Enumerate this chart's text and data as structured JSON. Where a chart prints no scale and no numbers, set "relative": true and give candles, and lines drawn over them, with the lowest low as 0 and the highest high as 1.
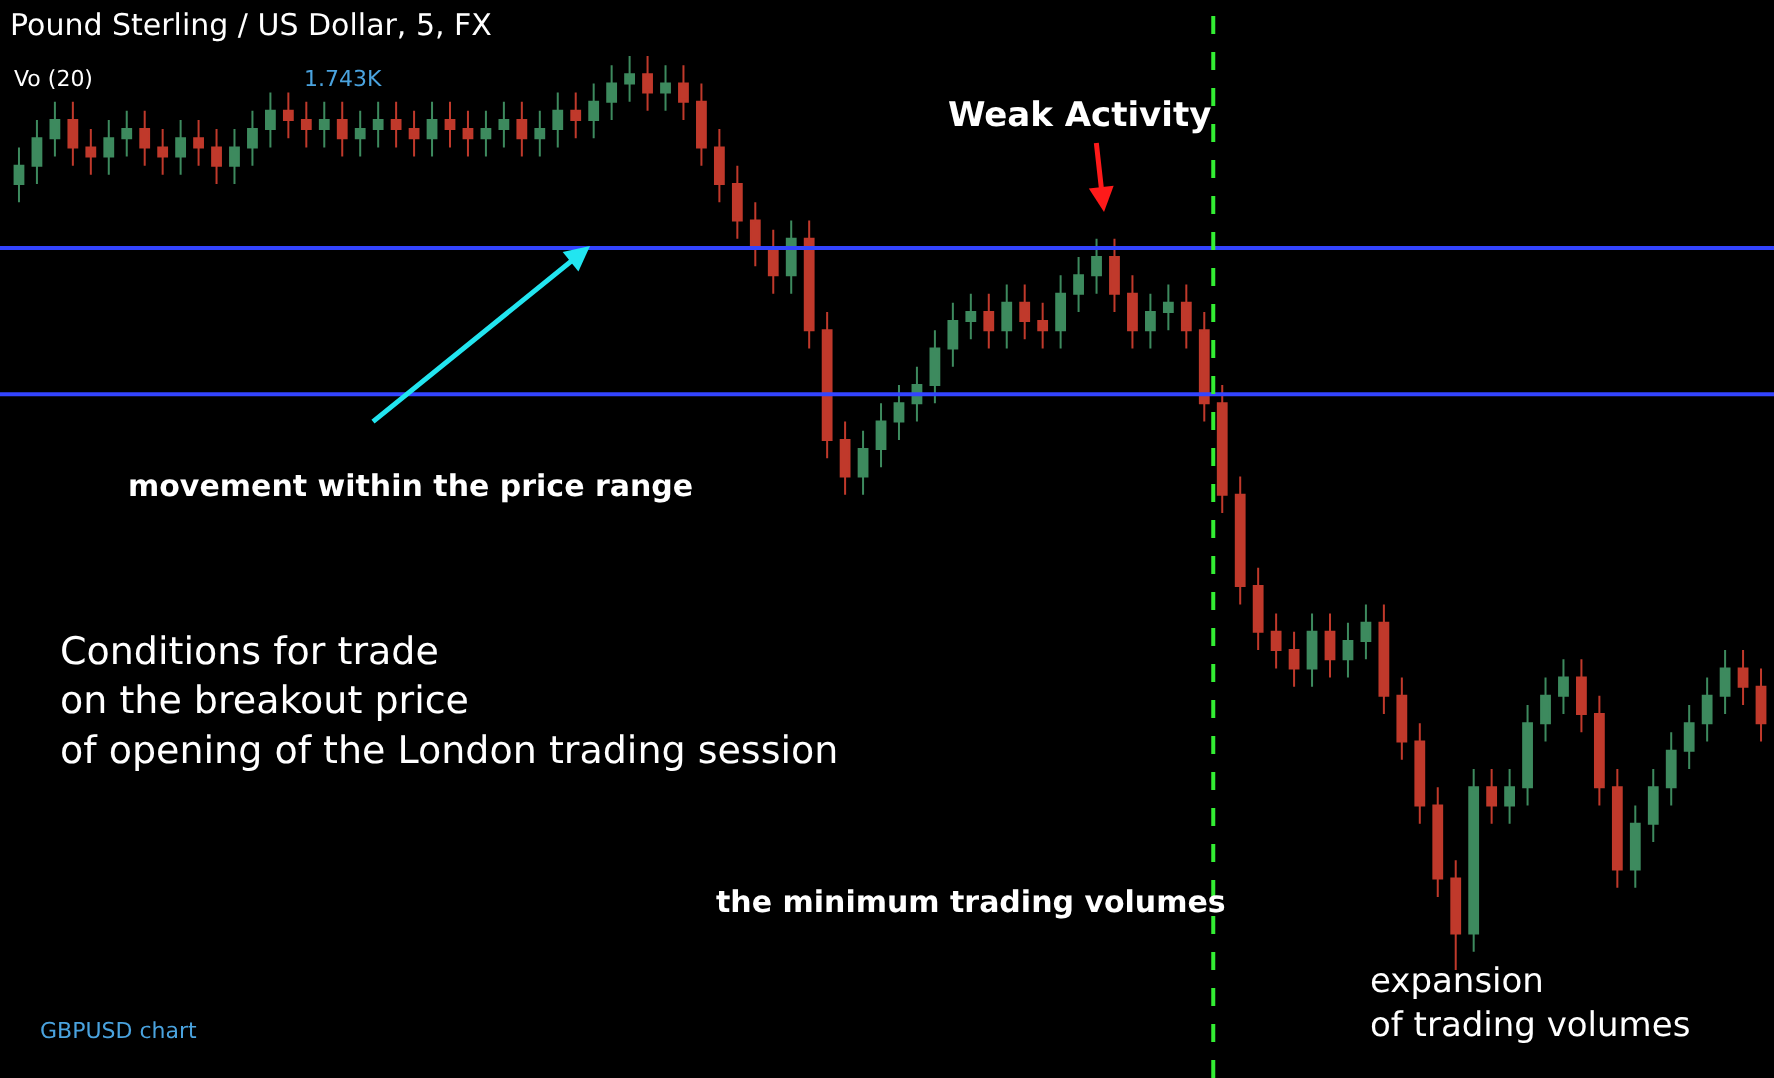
{
  "chart_data": {
    "type": "candlestick",
    "relative": true,
    "title": "Pound Sterling / US Dollar, 5, FX",
    "categories": [
      null,
      null,
      null,
      null,
      null,
      null,
      null,
      null,
      null,
      null,
      null,
      null,
      null,
      null,
      null,
      null,
      null,
      null,
      null,
      null,
      null,
      null,
      null,
      null,
      null,
      null,
      null,
      null,
      null,
      null,
      null,
      null,
      null,
      null,
      null,
      null,
      null,
      null,
      null,
      null,
      null,
      null,
      null,
      null,
      null,
      null,
      null,
      null,
      null,
      null,
      null,
      null,
      null,
      null,
      null,
      null,
      null,
      null,
      null,
      null,
      null,
      null,
      null,
      null,
      null,
      null,
      null,
      null,
      null,
      null,
      null,
      null,
      null,
      null,
      null,
      null,
      null,
      null,
      null,
      null,
      null,
      null,
      null,
      null,
      null,
      null,
      null,
      null,
      null,
      null,
      null,
      null,
      null,
      null,
      null,
      null,
      null,
      null
    ],
    "ohlc": [
      [
        0.86,
        0.9,
        0.84,
        0.88
      ],
      [
        0.88,
        0.93,
        0.86,
        0.91
      ],
      [
        0.91,
        0.95,
        0.89,
        0.93
      ],
      [
        0.93,
        0.95,
        0.88,
        0.9
      ],
      [
        0.9,
        0.92,
        0.87,
        0.89
      ],
      [
        0.89,
        0.93,
        0.87,
        0.91
      ],
      [
        0.91,
        0.94,
        0.89,
        0.92
      ],
      [
        0.92,
        0.94,
        0.88,
        0.9
      ],
      [
        0.9,
        0.92,
        0.87,
        0.89
      ],
      [
        0.89,
        0.93,
        0.87,
        0.91
      ],
      [
        0.91,
        0.93,
        0.88,
        0.9
      ],
      [
        0.9,
        0.92,
        0.86,
        0.88
      ],
      [
        0.88,
        0.92,
        0.86,
        0.9
      ],
      [
        0.9,
        0.94,
        0.88,
        0.92
      ],
      [
        0.92,
        0.96,
        0.9,
        0.94
      ],
      [
        0.94,
        0.96,
        0.91,
        0.93
      ],
      [
        0.93,
        0.95,
        0.9,
        0.92
      ],
      [
        0.92,
        0.95,
        0.9,
        0.93
      ],
      [
        0.93,
        0.95,
        0.89,
        0.91
      ],
      [
        0.91,
        0.94,
        0.89,
        0.92
      ],
      [
        0.92,
        0.95,
        0.9,
        0.93
      ],
      [
        0.93,
        0.95,
        0.9,
        0.92
      ],
      [
        0.92,
        0.94,
        0.89,
        0.91
      ],
      [
        0.91,
        0.95,
        0.89,
        0.93
      ],
      [
        0.93,
        0.95,
        0.9,
        0.92
      ],
      [
        0.92,
        0.94,
        0.89,
        0.91
      ],
      [
        0.91,
        0.94,
        0.89,
        0.92
      ],
      [
        0.92,
        0.95,
        0.9,
        0.93
      ],
      [
        0.93,
        0.95,
        0.89,
        0.91
      ],
      [
        0.91,
        0.94,
        0.89,
        0.92
      ],
      [
        0.92,
        0.96,
        0.9,
        0.94
      ],
      [
        0.94,
        0.96,
        0.91,
        0.93
      ],
      [
        0.93,
        0.97,
        0.91,
        0.95
      ],
      [
        0.95,
        0.99,
        0.93,
        0.97
      ],
      [
        0.97,
        1.0,
        0.95,
        0.98
      ],
      [
        0.98,
        1.0,
        0.94,
        0.96
      ],
      [
        0.96,
        0.99,
        0.94,
        0.97
      ],
      [
        0.97,
        0.99,
        0.93,
        0.95
      ],
      [
        0.95,
        0.97,
        0.88,
        0.9
      ],
      [
        0.9,
        0.92,
        0.84,
        0.86
      ],
      [
        0.86,
        0.88,
        0.8,
        0.82
      ],
      [
        0.82,
        0.84,
        0.77,
        0.79
      ],
      [
        0.79,
        0.81,
        0.74,
        0.76
      ],
      [
        0.76,
        0.82,
        0.74,
        0.8
      ],
      [
        0.8,
        0.82,
        0.68,
        0.7
      ],
      [
        0.7,
        0.72,
        0.56,
        0.58
      ],
      [
        0.58,
        0.6,
        0.52,
        0.54
      ],
      [
        0.54,
        0.59,
        0.52,
        0.57
      ],
      [
        0.57,
        0.62,
        0.55,
        0.6
      ],
      [
        0.6,
        0.64,
        0.58,
        0.62
      ],
      [
        0.62,
        0.66,
        0.6,
        0.64
      ],
      [
        0.64,
        0.7,
        0.62,
        0.68
      ],
      [
        0.68,
        0.73,
        0.66,
        0.71
      ],
      [
        0.71,
        0.74,
        0.69,
        0.72
      ],
      [
        0.72,
        0.74,
        0.68,
        0.7
      ],
      [
        0.7,
        0.75,
        0.68,
        0.73
      ],
      [
        0.73,
        0.75,
        0.69,
        0.71
      ],
      [
        0.71,
        0.73,
        0.68,
        0.7
      ],
      [
        0.7,
        0.76,
        0.68,
        0.74
      ],
      [
        0.74,
        0.78,
        0.72,
        0.76
      ],
      [
        0.76,
        0.8,
        0.74,
        0.78
      ],
      [
        0.78,
        0.8,
        0.72,
        0.74
      ],
      [
        0.74,
        0.76,
        0.68,
        0.7
      ],
      [
        0.7,
        0.74,
        0.68,
        0.72
      ],
      [
        0.72,
        0.75,
        0.7,
        0.73
      ],
      [
        0.73,
        0.75,
        0.68,
        0.7
      ],
      [
        0.7,
        0.72,
        0.6,
        0.62
      ],
      [
        0.62,
        0.64,
        0.5,
        0.52
      ],
      [
        0.52,
        0.54,
        0.4,
        0.42
      ],
      [
        0.42,
        0.44,
        0.35,
        0.37
      ],
      [
        0.37,
        0.39,
        0.33,
        0.35
      ],
      [
        0.35,
        0.37,
        0.31,
        0.33
      ],
      [
        0.33,
        0.39,
        0.31,
        0.37
      ],
      [
        0.37,
        0.39,
        0.32,
        0.34
      ],
      [
        0.34,
        0.38,
        0.32,
        0.36
      ],
      [
        0.36,
        0.4,
        0.34,
        0.38
      ],
      [
        0.38,
        0.4,
        0.28,
        0.3
      ],
      [
        0.3,
        0.32,
        0.23,
        0.25
      ],
      [
        0.25,
        0.27,
        0.16,
        0.18
      ],
      [
        0.18,
        0.2,
        0.08,
        0.1
      ],
      [
        0.1,
        0.12,
        0.0,
        0.04
      ],
      [
        0.04,
        0.22,
        0.02,
        0.2
      ],
      [
        0.2,
        0.22,
        0.16,
        0.18
      ],
      [
        0.18,
        0.22,
        0.16,
        0.2
      ],
      [
        0.2,
        0.29,
        0.18,
        0.27
      ],
      [
        0.27,
        0.32,
        0.25,
        0.3
      ],
      [
        0.3,
        0.34,
        0.28,
        0.32
      ],
      [
        0.32,
        0.34,
        0.26,
        0.28
      ],
      [
        0.28,
        0.3,
        0.18,
        0.2
      ],
      [
        0.2,
        0.22,
        0.09,
        0.11
      ],
      [
        0.11,
        0.18,
        0.09,
        0.16
      ],
      [
        0.16,
        0.22,
        0.14,
        0.2
      ],
      [
        0.2,
        0.26,
        0.18,
        0.24
      ],
      [
        0.24,
        0.29,
        0.22,
        0.27
      ],
      [
        0.27,
        0.32,
        0.25,
        0.3
      ],
      [
        0.3,
        0.35,
        0.28,
        0.33
      ],
      [
        0.33,
        0.35,
        0.29,
        0.31
      ],
      [
        0.31,
        0.33,
        0.25,
        0.27
      ]
    ],
    "colors": [
      "#3d8a5e",
      "#3d8a5e",
      "#3d8a5e",
      "#c0392b",
      "#c0392b",
      "#3d8a5e",
      "#3d8a5e",
      "#c0392b",
      "#c0392b",
      "#3d8a5e",
      "#c0392b",
      "#c0392b",
      "#3d8a5e",
      "#3d8a5e",
      "#3d8a5e",
      "#c0392b",
      "#c0392b",
      "#3d8a5e",
      "#c0392b",
      "#3d8a5e",
      "#3d8a5e",
      "#c0392b",
      "#c0392b",
      "#3d8a5e",
      "#c0392b",
      "#c0392b",
      "#3d8a5e",
      "#3d8a5e",
      "#c0392b",
      "#3d8a5e",
      "#3d8a5e",
      "#c0392b",
      "#3d8a5e",
      "#3d8a5e",
      "#3d8a5e",
      "#c0392b",
      "#3d8a5e",
      "#c0392b",
      "#c0392b",
      "#c0392b",
      "#c0392b",
      "#c0392b",
      "#c0392b",
      "#3d8a5e",
      "#c0392b",
      "#c0392b",
      "#c0392b",
      "#3d8a5e",
      "#3d8a5e",
      "#3d8a5e",
      "#3d8a5e",
      "#3d8a5e",
      "#3d8a5e",
      "#3d8a5e",
      "#c0392b",
      "#3d8a5e",
      "#c0392b",
      "#c0392b",
      "#3d8a5e",
      "#3d8a5e",
      "#3d8a5e",
      "#c0392b",
      "#c0392b",
      "#3d8a5e",
      "#3d8a5e",
      "#c0392b",
      "#c0392b",
      "#c0392b",
      "#c0392b",
      "#c0392b",
      "#c0392b",
      "#c0392b",
      "#3d8a5e",
      "#c0392b",
      "#3d8a5e",
      "#3d8a5e",
      "#c0392b",
      "#c0392b",
      "#c0392b",
      "#c0392b",
      "#c0392b",
      "#3d8a5e",
      "#c0392b",
      "#3d8a5e",
      "#3d8a5e",
      "#3d8a5e",
      "#3d8a5e",
      "#c0392b",
      "#c0392b",
      "#c0392b",
      "#3d8a5e",
      "#3d8a5e",
      "#3d8a5e",
      "#3d8a5e",
      "#3d8a5e",
      "#3d8a5e",
      "#c0392b",
      "#c0392b"
    ],
    "ref_lines": [
      {
        "axis": "y",
        "value": 0.79,
        "color": "#3344ff"
      },
      {
        "axis": "y",
        "value": 0.63,
        "color": "#3344ff"
      }
    ],
    "annotations": [
      "Vo (20)",
      "1.743K",
      "Weak Activity",
      "movement within the price range",
      "Conditions for trade\non the breakout price\nof opening of the London trading session",
      "the minimum trading volumes",
      "expansion\nof trading volumes",
      "GBPUSD chart"
    ],
    "grid": false,
    "legend": false,
    "tick_labels": false
  }
}
